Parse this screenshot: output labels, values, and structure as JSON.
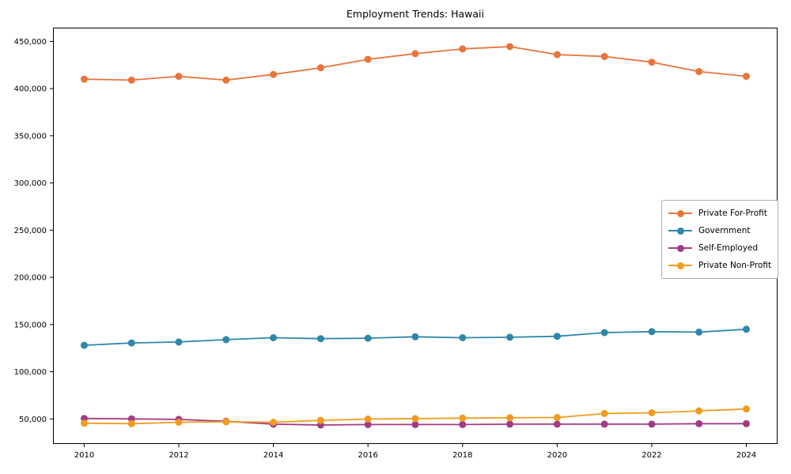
{
  "chart_data": {
    "type": "line",
    "title": "Employment Trends: Hawaii",
    "xlabel": "",
    "ylabel": "",
    "x": [
      2010,
      2011,
      2012,
      2013,
      2014,
      2015,
      2016,
      2017,
      2018,
      2019,
      2020,
      2021,
      2022,
      2023,
      2024
    ],
    "series": [
      {
        "name": "Private For-Profit",
        "color": "#e8743b",
        "values": [
          410000,
          409000,
          413000,
          409000,
          415000,
          422000,
          431000,
          437000,
          442000,
          444500,
          436000,
          434000,
          428000,
          418000,
          413000
        ]
      },
      {
        "name": "Government",
        "color": "#2e87a8",
        "values": [
          128000,
          130500,
          131500,
          134000,
          136000,
          135000,
          135500,
          137000,
          136000,
          136500,
          137500,
          141500,
          142500,
          142000,
          145000
        ]
      },
      {
        "name": "Self-Employed",
        "color": "#a23b85",
        "values": [
          50500,
          50000,
          49500,
          47500,
          44500,
          43500,
          44000,
          44000,
          44000,
          44500,
          44500,
          44500,
          44500,
          45000,
          45000
        ]
      },
      {
        "name": "Private Non-Profit",
        "color": "#f09c1e",
        "values": [
          45500,
          45000,
          46500,
          47000,
          46500,
          48500,
          49800,
          50300,
          50800,
          51200,
          51500,
          55800,
          56500,
          58500,
          60500
        ]
      }
    ],
    "xticks": [
      2010,
      2012,
      2014,
      2016,
      2018,
      2020,
      2022,
      2024
    ],
    "yticks": [
      50000,
      100000,
      150000,
      200000,
      250000,
      300000,
      350000,
      400000,
      450000
    ],
    "xlim": [
      2009.34,
      2024.66
    ],
    "ylim": [
      23450,
      464550
    ],
    "grid": false,
    "legend_position": "center right",
    "frame_color": "#000000",
    "background_color": "#ffffff",
    "marker": "circle",
    "line_width": 1.8,
    "marker_radius": 4.5
  }
}
